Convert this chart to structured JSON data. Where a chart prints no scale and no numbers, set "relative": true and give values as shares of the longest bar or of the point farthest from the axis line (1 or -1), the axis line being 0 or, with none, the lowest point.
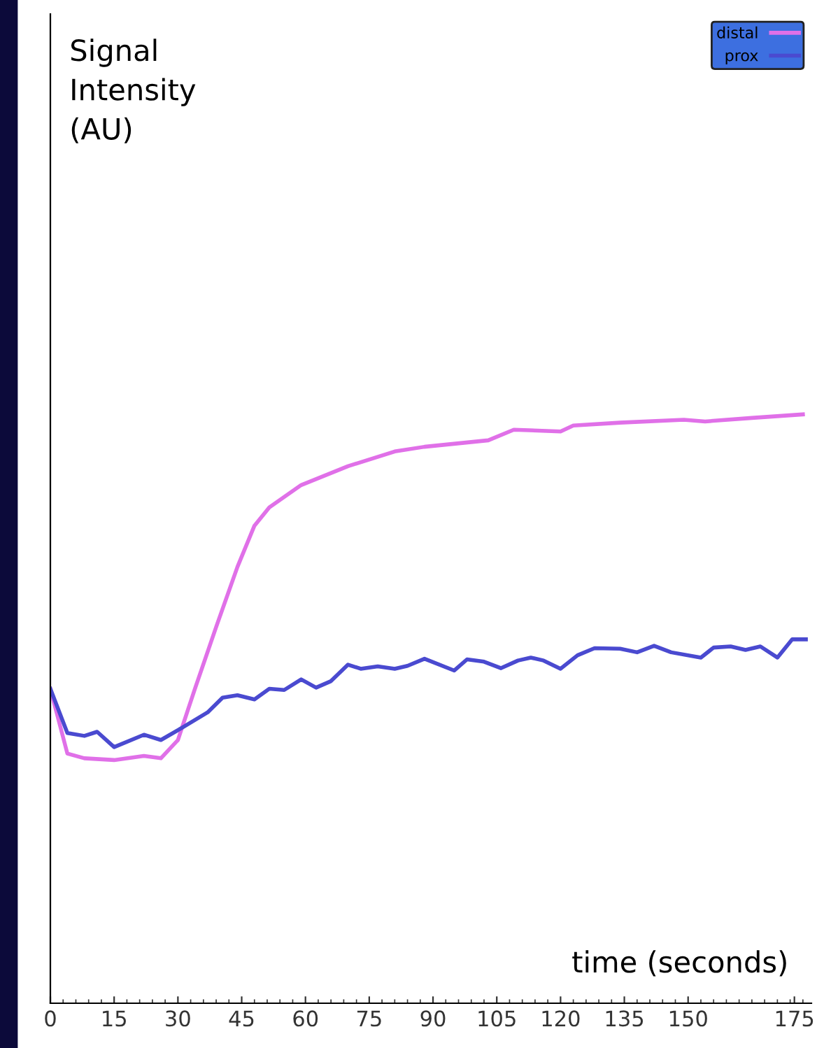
{
  "chart_data": {
    "type": "line",
    "relative": true,
    "xlabel": "time (seconds)",
    "annotations": [
      "Signal\nIntensity\n(AU)"
    ],
    "xlim": [
      0,
      179
    ],
    "xticks": [
      0,
      15,
      30,
      45,
      60,
      75,
      90,
      105,
      120,
      135,
      150,
      175
    ],
    "legend": "top right",
    "grid": false,
    "marker": "none",
    "line_style": "solid",
    "series": [
      {
        "name": "distal",
        "color": "#e070e8",
        "x": [
          0,
          4,
          8,
          15,
          22,
          26,
          30,
          34,
          39,
          44,
          48,
          51.5,
          59,
          70,
          81,
          88,
          103,
          109,
          120,
          123,
          134,
          149,
          154,
          165,
          177
        ],
        "values": [
          0.534,
          0.424,
          0.416,
          0.413,
          0.42,
          0.416,
          0.447,
          0.534,
          0.639,
          0.741,
          0.811,
          0.842,
          0.88,
          0.912,
          0.937,
          0.945,
          0.956,
          0.974,
          0.971,
          0.981,
          0.986,
          0.991,
          0.988,
          0.994,
          1.0
        ]
      },
      {
        "name": "prox",
        "color": "#4a4ad0",
        "x": [
          0,
          4,
          8,
          11,
          15,
          22,
          26,
          31,
          37,
          40.5,
          44,
          48,
          51.5,
          55,
          59,
          62.5,
          66,
          70,
          73,
          77,
          81,
          84,
          88,
          95,
          98,
          102,
          106,
          110,
          113,
          116,
          120,
          124,
          128,
          134,
          138,
          142,
          146,
          153,
          156,
          160,
          163.5,
          167,
          171,
          174.5,
          177.7
        ],
        "values": [
          0.534,
          0.459,
          0.454,
          0.461,
          0.435,
          0.456,
          0.447,
          0.468,
          0.494,
          0.519,
          0.523,
          0.516,
          0.534,
          0.532,
          0.55,
          0.536,
          0.547,
          0.575,
          0.568,
          0.572,
          0.568,
          0.573,
          0.585,
          0.565,
          0.584,
          0.58,
          0.569,
          0.582,
          0.587,
          0.582,
          0.568,
          0.591,
          0.603,
          0.602,
          0.596,
          0.607,
          0.596,
          0.587,
          0.604,
          0.606,
          0.6,
          0.606,
          0.587,
          0.618,
          0.618
        ]
      }
    ]
  }
}
